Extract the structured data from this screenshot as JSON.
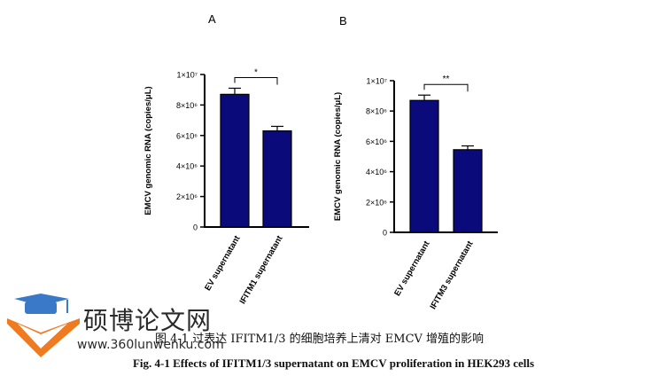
{
  "chart_data": [
    {
      "type": "bar",
      "panel": "A",
      "ylabel": "EMCV genomic RNA (copies/μL)",
      "categories": [
        "EV supernatant",
        "IFITM1 supernatant"
      ],
      "values": [
        8700000,
        6300000
      ],
      "errors": [
        400000,
        300000
      ],
      "ylim": [
        0,
        10000000
      ],
      "yticks": [
        "0",
        "2×10⁶",
        "4×10⁶",
        "6×10⁶",
        "8×10⁶",
        "1×10⁷"
      ],
      "significance": "*",
      "bar_color": "#0a0a7a"
    },
    {
      "type": "bar",
      "panel": "B",
      "ylabel": "EMCV genomic RNA (copies/μL)",
      "categories": [
        "EV supernatant",
        "IFITM3 supernatant"
      ],
      "values": [
        8700000,
        5450000
      ],
      "errors": [
        350000,
        250000
      ],
      "ylim": [
        0,
        10000000
      ],
      "yticks": [
        "0",
        "2×10⁶",
        "4×10⁶",
        "6×10⁶",
        "8×10⁶",
        "1×10⁷"
      ],
      "significance": "**",
      "bar_color": "#0a0a7a"
    }
  ],
  "caption": {
    "cn": "图 4-1 过表达 IFITM1/3 的细胞培养上清对 EMCV 增殖的影响",
    "en": "Fig. 4-1 Effects of IFITM1/3 supernatant on EMCV proliferation in HEK293 cells"
  },
  "watermark": {
    "brand": "硕博论文网",
    "url": "www.360lunwenku.com",
    "icon": "graduation-cap-logo-icon",
    "colors": {
      "cap": "#3a78c8",
      "book": "#f07a20"
    }
  }
}
